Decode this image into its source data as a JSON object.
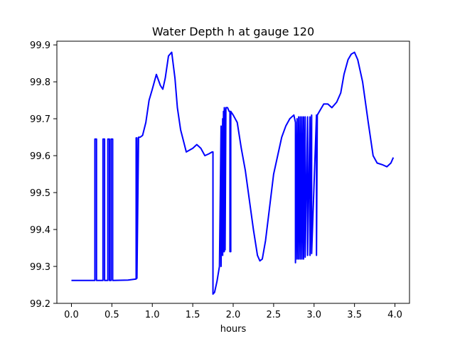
{
  "chart_data": {
    "type": "line",
    "title": "Water Depth h at gauge 120",
    "xlabel": "hours",
    "ylabel": "",
    "xlim": [
      -0.18,
      4.18
    ],
    "ylim": [
      99.2,
      99.91
    ],
    "xticks": [
      0.0,
      0.5,
      1.0,
      1.5,
      2.0,
      2.5,
      3.0,
      3.5,
      4.0
    ],
    "xtick_labels": [
      "0.0",
      "0.5",
      "1.0",
      "1.5",
      "2.0",
      "2.5",
      "3.0",
      "3.5",
      "4.0"
    ],
    "yticks": [
      99.2,
      99.3,
      99.4,
      99.5,
      99.6,
      99.7,
      99.8,
      99.9
    ],
    "ytick_labels": [
      "99.2",
      "99.3",
      "99.4",
      "99.5",
      "99.6",
      "99.7",
      "99.8",
      "99.9"
    ],
    "grid": false,
    "line_color": "#0000ff",
    "series": [
      {
        "x": [
          0.0,
          0.29,
          0.29,
          0.31,
          0.31,
          0.39,
          0.39,
          0.41,
          0.41,
          0.45,
          0.45,
          0.47,
          0.47,
          0.49,
          0.49,
          0.51,
          0.51,
          0.7,
          0.8,
          0.8,
          0.81,
          0.81,
          0.83,
          0.85,
          0.88,
          0.92,
          0.96,
          1.0,
          1.05,
          1.1,
          1.13,
          1.16,
          1.2,
          1.24,
          1.28,
          1.31,
          1.35,
          1.42,
          1.5,
          1.55,
          1.6,
          1.65,
          1.7,
          1.74,
          1.75,
          1.75,
          1.77,
          1.8,
          1.83,
          1.85,
          1.85,
          1.87,
          1.87,
          1.88,
          1.88,
          1.89,
          1.89,
          1.9,
          1.9,
          1.91,
          1.91,
          1.93,
          1.95,
          1.96,
          1.96,
          1.97,
          1.97,
          2.0,
          2.05,
          2.1,
          2.15,
          2.2,
          2.25,
          2.3,
          2.33,
          2.36,
          2.4,
          2.45,
          2.5,
          2.55,
          2.6,
          2.65,
          2.7,
          2.75,
          2.77,
          2.77,
          2.79,
          2.79,
          2.81,
          2.81,
          2.83,
          2.83,
          2.85,
          2.85,
          2.87,
          2.87,
          2.89,
          2.89,
          2.92,
          2.92,
          2.95,
          2.95,
          2.97,
          2.97,
          3.03,
          3.03,
          3.04,
          3.04,
          3.08,
          3.12,
          3.17,
          3.22,
          3.28,
          3.33,
          3.37,
          3.42,
          3.46,
          3.5,
          3.54,
          3.6,
          3.67,
          3.73,
          3.78,
          3.85,
          3.9,
          3.95,
          3.98
        ],
        "y": [
          99.262,
          99.262,
          99.645,
          99.645,
          99.262,
          99.262,
          99.645,
          99.645,
          99.262,
          99.262,
          99.645,
          99.645,
          99.262,
          99.262,
          99.645,
          99.645,
          99.262,
          99.263,
          99.266,
          99.648,
          99.648,
          99.268,
          99.65,
          99.65,
          99.655,
          99.69,
          99.75,
          99.78,
          99.82,
          99.79,
          99.78,
          99.81,
          99.87,
          99.88,
          99.81,
          99.73,
          99.67,
          99.61,
          99.62,
          99.63,
          99.62,
          99.6,
          99.605,
          99.61,
          99.61,
          99.225,
          99.23,
          99.26,
          99.3,
          99.68,
          99.3,
          99.7,
          99.33,
          99.72,
          99.34,
          99.73,
          99.34,
          99.725,
          99.345,
          99.73,
          99.73,
          99.73,
          99.72,
          99.72,
          99.34,
          99.34,
          99.72,
          99.71,
          99.69,
          99.62,
          99.56,
          99.48,
          99.4,
          99.33,
          99.315,
          99.32,
          99.37,
          99.46,
          99.55,
          99.6,
          99.65,
          99.68,
          99.7,
          99.71,
          99.69,
          99.31,
          99.7,
          99.32,
          99.705,
          99.32,
          99.705,
          99.32,
          99.705,
          99.32,
          99.705,
          99.32,
          99.705,
          99.325,
          99.705,
          99.33,
          99.705,
          99.33,
          99.71,
          99.335,
          99.71,
          99.33,
          99.71,
          99.71,
          99.725,
          99.74,
          99.74,
          99.73,
          99.745,
          99.77,
          99.82,
          99.86,
          99.875,
          99.88,
          99.86,
          99.8,
          99.69,
          99.6,
          99.58,
          99.575,
          99.57,
          99.58,
          99.595
        ]
      }
    ]
  }
}
